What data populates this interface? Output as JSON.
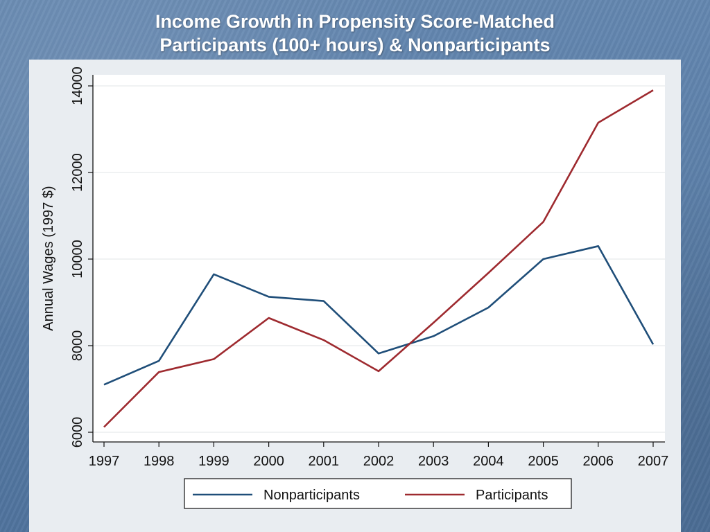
{
  "slide": {
    "title_line1": "Income Growth in Propensity Score-Matched",
    "title_line2": "Participants (100+ hours) & Nonparticipants"
  },
  "chart_data": {
    "type": "line",
    "title": "",
    "xlabel": "",
    "ylabel": "Annual Wages (1997 $)",
    "x": [
      1997,
      1998,
      1999,
      2000,
      2001,
      2002,
      2003,
      2004,
      2005,
      2006,
      2007
    ],
    "xticks": [
      "1997",
      "1998",
      "1999",
      "2000",
      "2001",
      "2002",
      "2003",
      "2004",
      "2005",
      "2006",
      "2007"
    ],
    "yticks": [
      "6000",
      "8000",
      "10000",
      "12000",
      "14000"
    ],
    "ylim": [
      6000,
      14000
    ],
    "grid": true,
    "legend_position": "bottom",
    "series": [
      {
        "name": "Nonparticipants",
        "color": "#1f4e79",
        "values": [
          7100,
          7650,
          9650,
          9130,
          9030,
          7820,
          8220,
          8880,
          10000,
          10300,
          8030
        ]
      },
      {
        "name": "Participants",
        "color": "#9e2a2f",
        "values": [
          6120,
          7390,
          7690,
          8640,
          8130,
          7410,
          8530,
          9680,
          10860,
          13150,
          13900
        ]
      }
    ]
  }
}
